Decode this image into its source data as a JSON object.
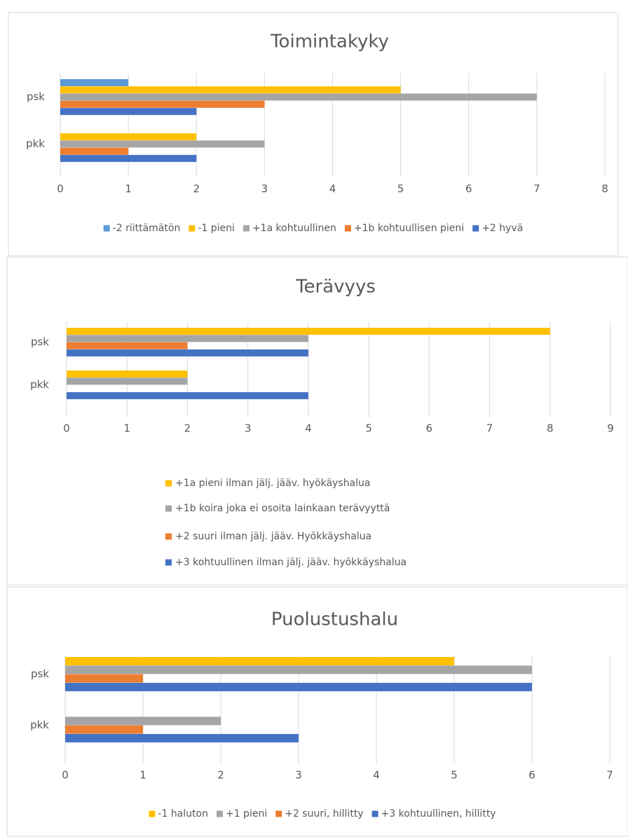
{
  "chart_data": [
    {
      "type": "bar",
      "orientation": "horizontal",
      "title": "Toimintakyky",
      "categories": [
        "psk",
        "pkk"
      ],
      "series": [
        {
          "name": "-2 riittämätön",
          "color": "#5b9bd5",
          "values": [
            1,
            0
          ]
        },
        {
          "name": "-1 pieni",
          "color": "#ffc000",
          "values": [
            5,
            2
          ]
        },
        {
          "name": "+1a kohtuullinen",
          "color": "#a5a5a5",
          "values": [
            7,
            3
          ]
        },
        {
          "name": "+1b kohtuullisen pieni",
          "color": "#ed7d31",
          "values": [
            3,
            1
          ]
        },
        {
          "name": "+2 hyvä",
          "color": "#4472c4",
          "values": [
            2,
            2
          ]
        }
      ],
      "xlim": [
        0,
        8
      ],
      "xticks": [
        0,
        1,
        2,
        3,
        4,
        5,
        6,
        7,
        8
      ],
      "grid": true,
      "legend": "bottom"
    },
    {
      "type": "bar",
      "orientation": "horizontal",
      "title": "Terävyys",
      "categories": [
        "psk",
        "pkk"
      ],
      "series": [
        {
          "name": "+1a pieni ilman jälj. jääv. hyökäyshalua",
          "color": "#ffc000",
          "values": [
            8,
            2
          ]
        },
        {
          "name": "+1b koira joka ei osoita lainkaan terävyyttä",
          "color": "#a5a5a5",
          "values": [
            4,
            2
          ]
        },
        {
          "name": "+2 suuri ilman jälj. jääv. Hyökkäyshalua",
          "color": "#ed7d31",
          "values": [
            2,
            0
          ]
        },
        {
          "name": "+3 kohtuullinen ilman jälj. jääv. hyökkäyshalua",
          "color": "#4472c4",
          "values": [
            4,
            4
          ]
        }
      ],
      "xlim": [
        0,
        9
      ],
      "xticks": [
        0,
        1,
        2,
        3,
        4,
        5,
        6,
        7,
        8,
        9
      ],
      "grid": true,
      "legend": "bottom"
    },
    {
      "type": "bar",
      "orientation": "horizontal",
      "title": "Puolustushalu",
      "categories": [
        "psk",
        "pkk"
      ],
      "series": [
        {
          "name": "-1 haluton",
          "color": "#ffc000",
          "values": [
            5,
            0
          ]
        },
        {
          "name": "+1 pieni",
          "color": "#a5a5a5",
          "values": [
            6,
            2
          ]
        },
        {
          "name": "+2 suuri, hillitty",
          "color": "#ed7d31",
          "values": [
            1,
            1
          ]
        },
        {
          "name": "+3 kohtuullinen, hillitty",
          "color": "#4472c4",
          "values": [
            6,
            3
          ]
        }
      ],
      "xlim": [
        0,
        7
      ],
      "xticks": [
        0,
        1,
        2,
        3,
        4,
        5,
        6,
        7
      ],
      "grid": true,
      "legend": "bottom"
    }
  ]
}
